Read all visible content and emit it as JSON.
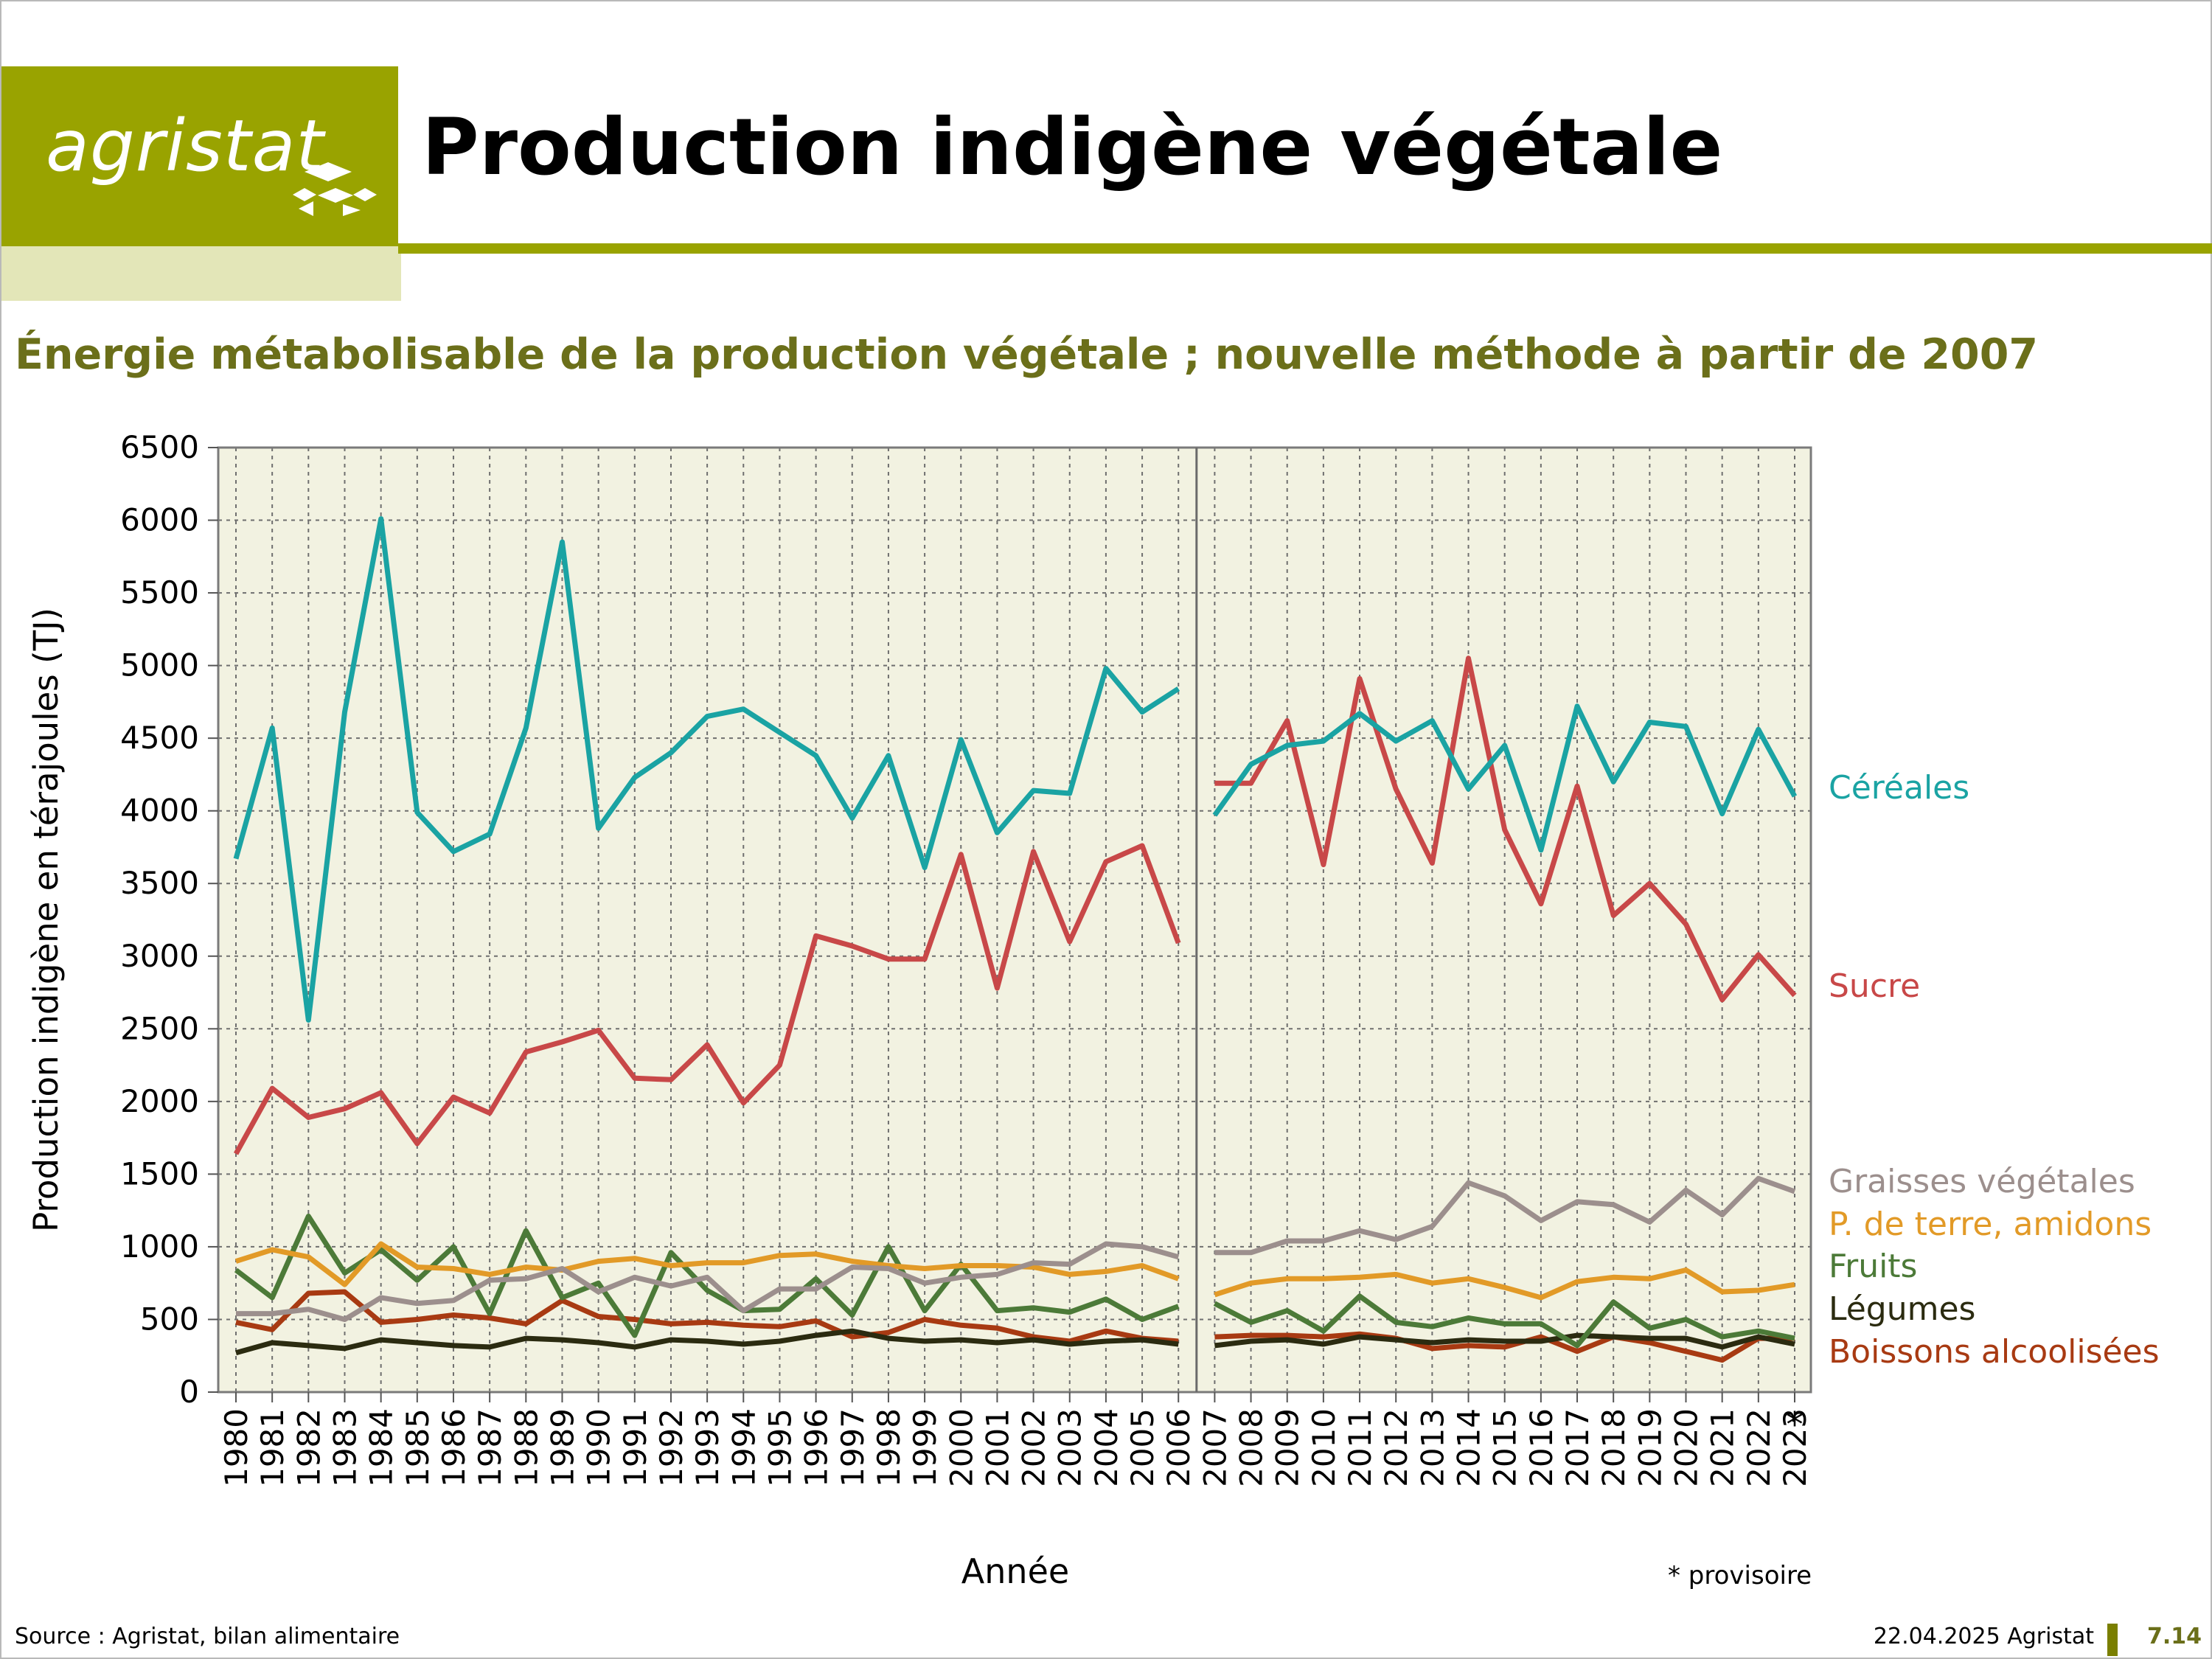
{
  "header": {
    "logo_text": "agristat",
    "title": "Production indigène végétale",
    "subtitle": "Énergie métabolisable de la production végétale ; nouvelle méthode à partir de 2007"
  },
  "footer": {
    "source": "Source : Agristat, bilan alimentaire",
    "date": "22.04.2025 Agristat",
    "page": "7.14"
  },
  "chart_data": {
    "type": "line",
    "title": "",
    "xlabel": "Année",
    "ylabel": "Production indigène en térajoules (TJ)",
    "ylim": [
      0,
      6500
    ],
    "yticks": [
      0,
      500,
      1000,
      1500,
      2000,
      2500,
      3000,
      3500,
      4000,
      4500,
      5000,
      5500,
      6000,
      6500
    ],
    "grid": true,
    "break_after": "2006",
    "note_marker": "*",
    "note": "* provisoire",
    "legend_position": "right",
    "categories": [
      "1980",
      "1981",
      "1982",
      "1983",
      "1984",
      "1985",
      "1986",
      "1987",
      "1988",
      "1989",
      "1990",
      "1991",
      "1992",
      "1993",
      "1994",
      "1995",
      "1996",
      "1997",
      "1998",
      "1999",
      "2000",
      "2001",
      "2002",
      "2003",
      "2004",
      "2005",
      "2006",
      "2007",
      "2008",
      "2009",
      "2010",
      "2011",
      "2012",
      "2013",
      "2014",
      "2015",
      "2016",
      "2017",
      "2018",
      "2019",
      "2020",
      "2021",
      "2022",
      "2023"
    ],
    "series": [
      {
        "name": "Céréales",
        "color": "#1aa3a3",
        "values": [
          3670,
          4570,
          2560,
          4680,
          6010,
          3990,
          3720,
          3840,
          4570,
          5850,
          3880,
          4230,
          4400,
          4650,
          4700,
          4540,
          4380,
          3950,
          4380,
          3610,
          4490,
          3850,
          4140,
          4120,
          4980,
          4680,
          4840,
          3970,
          4320,
          4450,
          4480,
          4670,
          4480,
          4620,
          4150,
          4450,
          3730,
          4720,
          4200,
          4610,
          4580,
          3980,
          4560,
          4100
        ]
      },
      {
        "name": "Sucre",
        "color": "#c84848",
        "values": [
          1640,
          2090,
          1890,
          1950,
          2060,
          1710,
          2030,
          1920,
          2340,
          2410,
          2490,
          2160,
          2150,
          2390,
          1990,
          2250,
          3140,
          3070,
          2980,
          2980,
          3700,
          2780,
          3720,
          3100,
          3650,
          3760,
          3090,
          4190,
          4190,
          4620,
          3630,
          4910,
          4150,
          3640,
          5050,
          3870,
          3360,
          4170,
          3280,
          3500,
          3220,
          2700,
          3010,
          2730
        ]
      },
      {
        "name": "Graisses végétales",
        "color": "#9c8f8d",
        "values": [
          540,
          540,
          570,
          500,
          650,
          610,
          630,
          770,
          780,
          850,
          690,
          790,
          730,
          790,
          560,
          710,
          710,
          860,
          850,
          750,
          790,
          810,
          890,
          880,
          1020,
          1000,
          930,
          960,
          960,
          1040,
          1040,
          1110,
          1050,
          1140,
          1440,
          1350,
          1180,
          1310,
          1290,
          1170,
          1390,
          1220,
          1470,
          1380
        ]
      },
      {
        "name": "P. de terre, amidons",
        "color": "#e29a27",
        "values": [
          900,
          980,
          930,
          740,
          1020,
          860,
          850,
          810,
          860,
          840,
          900,
          920,
          870,
          890,
          890,
          940,
          950,
          900,
          870,
          850,
          870,
          870,
          860,
          810,
          830,
          870,
          780,
          670,
          750,
          780,
          780,
          790,
          810,
          750,
          780,
          720,
          650,
          760,
          790,
          780,
          840,
          690,
          700,
          740
        ]
      },
      {
        "name": "Fruits",
        "color": "#4c7a38",
        "values": [
          840,
          650,
          1210,
          820,
          980,
          770,
          1000,
          540,
          1110,
          650,
          750,
          390,
          960,
          700,
          560,
          570,
          780,
          530,
          1000,
          560,
          880,
          560,
          580,
          550,
          640,
          500,
          590,
          610,
          480,
          560,
          420,
          660,
          480,
          450,
          510,
          470,
          470,
          320,
          620,
          440,
          500,
          380,
          420,
          370
        ]
      },
      {
        "name": "Légumes",
        "color": "#2b2b10",
        "values": [
          270,
          340,
          320,
          300,
          360,
          340,
          320,
          310,
          370,
          360,
          340,
          310,
          360,
          350,
          330,
          350,
          390,
          420,
          370,
          350,
          360,
          340,
          360,
          330,
          350,
          360,
          330,
          320,
          350,
          360,
          330,
          380,
          360,
          340,
          360,
          350,
          350,
          390,
          380,
          370,
          370,
          310,
          380,
          330
        ]
      },
      {
        "name": "Boissons alcoolisées",
        "color": "#a83a12",
        "values": [
          480,
          430,
          680,
          690,
          480,
          500,
          530,
          510,
          470,
          630,
          520,
          500,
          470,
          480,
          460,
          450,
          490,
          380,
          410,
          500,
          460,
          440,
          380,
          350,
          420,
          370,
          350,
          380,
          390,
          390,
          380,
          400,
          370,
          300,
          320,
          310,
          380,
          280,
          380,
          340,
          280,
          220,
          370,
          370
        ]
      }
    ]
  }
}
